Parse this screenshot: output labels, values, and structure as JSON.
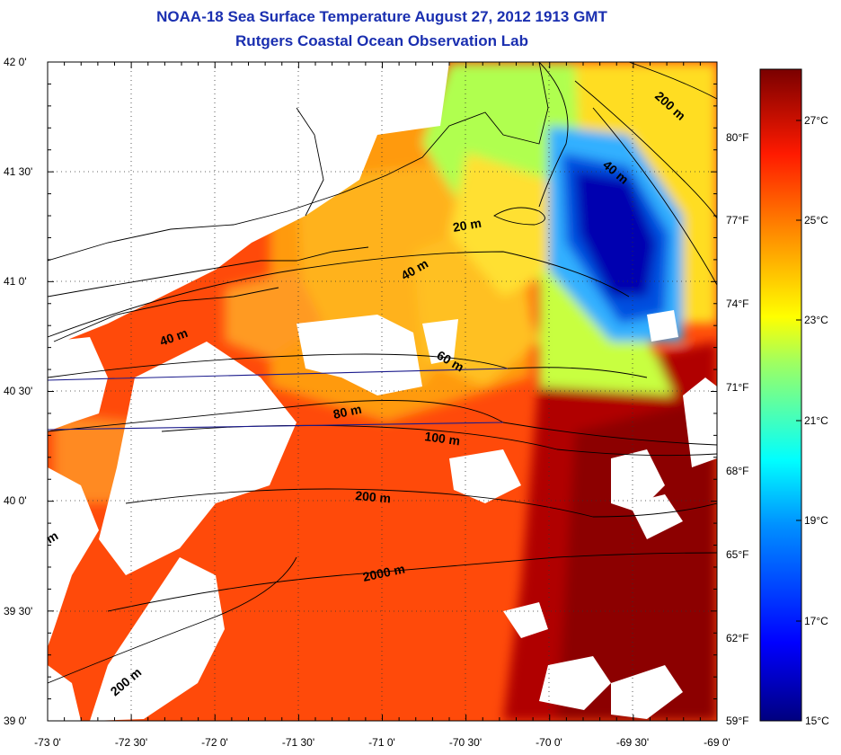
{
  "title": {
    "line1": "NOAA-18 Sea Surface Temperature August 27, 2012 1913 GMT",
    "line2": "Rutgers Coastal Ocean Observation Lab"
  },
  "axes": {
    "x_ticks": [
      "-73 0'",
      "-72 30'",
      "-72 0'",
      "-71 30'",
      "-71 0'",
      "-70 30'",
      "-70 0'",
      "-69 30'",
      "-69 0'"
    ],
    "y_ticks": [
      "42 0'",
      "41 30'",
      "41 0'",
      "40 30'",
      "40 0'",
      "39 30'",
      "39 0'"
    ],
    "lon_range": [
      -73,
      -69
    ],
    "lat_range": [
      39,
      42
    ],
    "grid": "dotted"
  },
  "colorbar": {
    "celsius_labels": [
      "27°C",
      "25°C",
      "23°C",
      "21°C",
      "19°C",
      "17°C",
      "15°C"
    ],
    "fahrenheit_labels": [
      "80°F",
      "77°F",
      "74°F",
      "71°F",
      "68°F",
      "65°F",
      "62°F",
      "59°F"
    ],
    "range_c": [
      15,
      28.5
    ],
    "colors": [
      "#00008f",
      "#0000ff",
      "#0080ff",
      "#00ffff",
      "#80ff80",
      "#ffff00",
      "#ff8000",
      "#ff0000",
      "#800000"
    ]
  },
  "contour_labels": [
    "200 m",
    "40 m",
    "20 m",
    "40 m",
    "40 m",
    "60 m",
    "80 m",
    "100 m",
    "200 m",
    "2000 m",
    "200 m",
    "m"
  ],
  "colors": {
    "title": "#1a2fb0",
    "land_missing": "#ffffff",
    "warm": "#ff3300",
    "hot": "#a00000",
    "cool": "#ffcc00",
    "cold": "#0000cc"
  }
}
